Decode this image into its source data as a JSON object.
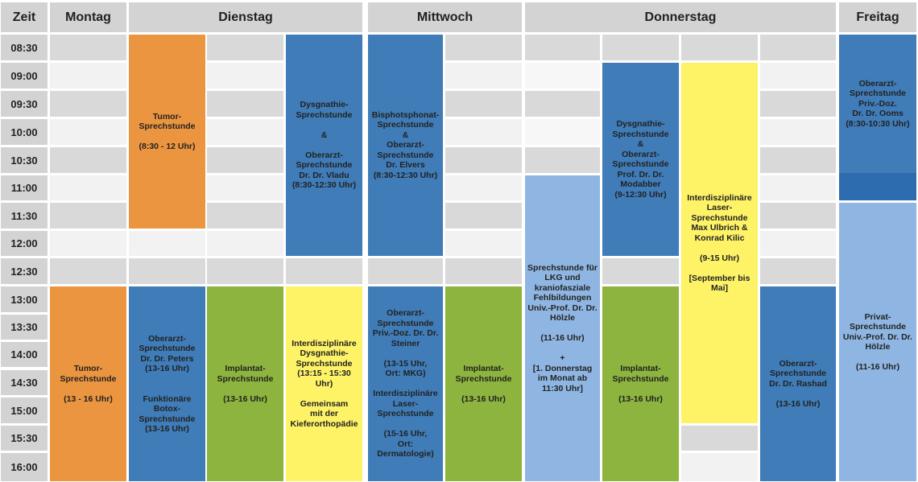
{
  "header": {
    "time_label": "Zeit",
    "days": [
      "Montag",
      "Dienstag",
      "Mittwoch",
      "Donnerstag",
      "Freitag"
    ]
  },
  "times": [
    "08:30",
    "09:00",
    "09:30",
    "10:00",
    "10:30",
    "11:00",
    "11:30",
    "12:00",
    "12:30",
    "13:00",
    "13:30",
    "14:00",
    "14:30",
    "15:00",
    "15:30",
    "16:00"
  ],
  "events": [
    {
      "day": "Montag",
      "color": "#ec9540",
      "text": "Tumor-\nSprechstunde\n\n(13 - 16 Uhr)"
    },
    {
      "day": "Dienstag",
      "color": "#ec9540",
      "text": "Tumor-\nSprechstunde\n\n(8:30 - 12 Uhr)"
    },
    {
      "day": "Dienstag",
      "color": "#3f7cb8",
      "text": "Dysgnathie-\nSprechstunde\n\n&\n\nOberarzt-\nSprechstunde\nDr. Dr. Vladu\n(8:30-12:30 Uhr)"
    },
    {
      "day": "Dienstag",
      "color": "#3f7cb8",
      "text": "Oberarzt-\nSprechstunde\nDr. Dr. Peters\n(13-16 Uhr)\n\n\nFunktionäre\nBotox-\nSprechstunde\n(13-16 Uhr)"
    },
    {
      "day": "Dienstag",
      "color": "#8db43e",
      "text": "Implantat-\nSprechstunde\n\n(13-16 Uhr)"
    },
    {
      "day": "Dienstag",
      "color": "#fef267",
      "text": "Interdisziplinäre\nDysgnathie-\nSprechstunde\n(13:15 - 15:30 Uhr)\n\nGemeinsam\nmit der\nKieferorthopädie"
    },
    {
      "day": "Mittwoch",
      "color": "#3f7cb8",
      "text": "Bisphotsphonat-\nSprechstunde\n&\nOberarzt-\nSprechstunde\nDr. Elvers\n(8:30-12:30 Uhr)"
    },
    {
      "day": "Mittwoch",
      "color": "#3f7cb8",
      "text": "Oberarzt-\nSprechstunde\nPriv.-Doz. Dr. Dr.\nSteiner\n\n(13-15 Uhr,\nOrt: MKG)\n\nInterdisziplinäre\nLaser-\nSprechstunde\n\n(15-16 Uhr,\nOrt: Dermatologie)"
    },
    {
      "day": "Mittwoch",
      "color": "#8db43e",
      "text": "Implantat-\nSprechstunde\n\n(13-16 Uhr)"
    },
    {
      "day": "Donnerstag",
      "color": "#8fb6e2",
      "text": "Sprechstunde für\nLKG und\nkraniofasziale\nFehlbildungen\nUniv.-Prof. Dr. Dr.\nHölzle\n\n(11-16 Uhr)\n\n+\n[1. Donnerstag\nim Monat ab\n11:30 Uhr]"
    },
    {
      "day": "Donnerstag",
      "color": "#3f7cb8",
      "text": "Dysgnathie-\nSprechstunde\n&\nOberarzt-\nSprechstunde\nProf. Dr. Dr.\nModabber\n(9-12:30 Uhr)"
    },
    {
      "day": "Donnerstag",
      "color": "#8db43e",
      "text": "Implantat-\nSprechstunde\n\n(13-16 Uhr)"
    },
    {
      "day": "Donnerstag",
      "color": "#fef267",
      "text": "Interdisziplinäre\nLaser-\nSprechstunde\nMax Ulbrich &\nKonrad Kilic\n\n(9-15 Uhr)\n\n[September bis\nMai]"
    },
    {
      "day": "Donnerstag",
      "color": "#3f7cb8",
      "text": "Oberarzt-\nSprechstunde\nDr. Dr. Rashad\n\n(13-16 Uhr)"
    },
    {
      "day": "Freitag",
      "color": "#3f7cb8",
      "text": "Oberarzt-\nSprechstunde\nPriv.-Doz.\nDr. Dr. Ooms\n(8:30-10:30 Uhr)"
    },
    {
      "day": "Freitag",
      "color": "#8fb6e2",
      "text": "Privat-\nSprechstunde\nUniv.-Prof. Dr. Dr.\nHölzle\n\n(11-16 Uhr)"
    }
  ]
}
